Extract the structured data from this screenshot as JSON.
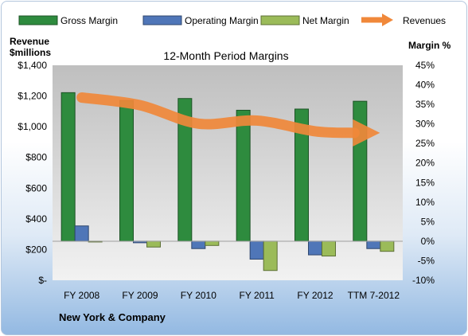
{
  "chart_data": {
    "type": "bar",
    "title": "12-Month Period Margins",
    "company": "New York & Company",
    "left_axis_label": [
      "Revenue",
      "$millions"
    ],
    "right_axis_label": "Margin %",
    "categories": [
      "FY 2008",
      "FY 2009",
      "FY 2010",
      "FY 2011",
      "FY 2012",
      "TTM 7-2012"
    ],
    "left_axis": {
      "min": 0,
      "max": 1400,
      "step": 200,
      "tick_labels": [
        "$-",
        "$200",
        "$400",
        "$600",
        "$800",
        "$1,000",
        "$1,200",
        "$1,400"
      ]
    },
    "right_axis": {
      "min": -10,
      "max": 45,
      "step": 5,
      "tick_labels": [
        "-10%",
        "-5%",
        "0%",
        "5%",
        "10%",
        "15%",
        "20%",
        "25%",
        "30%",
        "35%",
        "40%",
        "45%"
      ]
    },
    "series": [
      {
        "name": "Gross Margin",
        "axis": "right",
        "kind": "bar",
        "color": "#2e8b3e",
        "values": [
          38,
          36,
          36.5,
          33.5,
          33.8,
          35.8
        ]
      },
      {
        "name": "Operating Margin",
        "axis": "right",
        "kind": "bar",
        "color": "#4f76b8",
        "values": [
          3.9,
          -0.4,
          -1.9,
          -4.6,
          -3.5,
          -1.9
        ]
      },
      {
        "name": "Net Margin",
        "axis": "right",
        "kind": "bar",
        "color": "#9bbb59",
        "values": [
          -0.2,
          -1.5,
          -1.1,
          -7.5,
          -3.8,
          -2.6
        ]
      },
      {
        "name": "Revenues",
        "axis": "left",
        "kind": "line",
        "color": "#f0883a",
        "values": [
          1190,
          1140,
          1020,
          1040,
          970,
          960
        ]
      }
    ],
    "grid": false,
    "legend_position": "top"
  }
}
